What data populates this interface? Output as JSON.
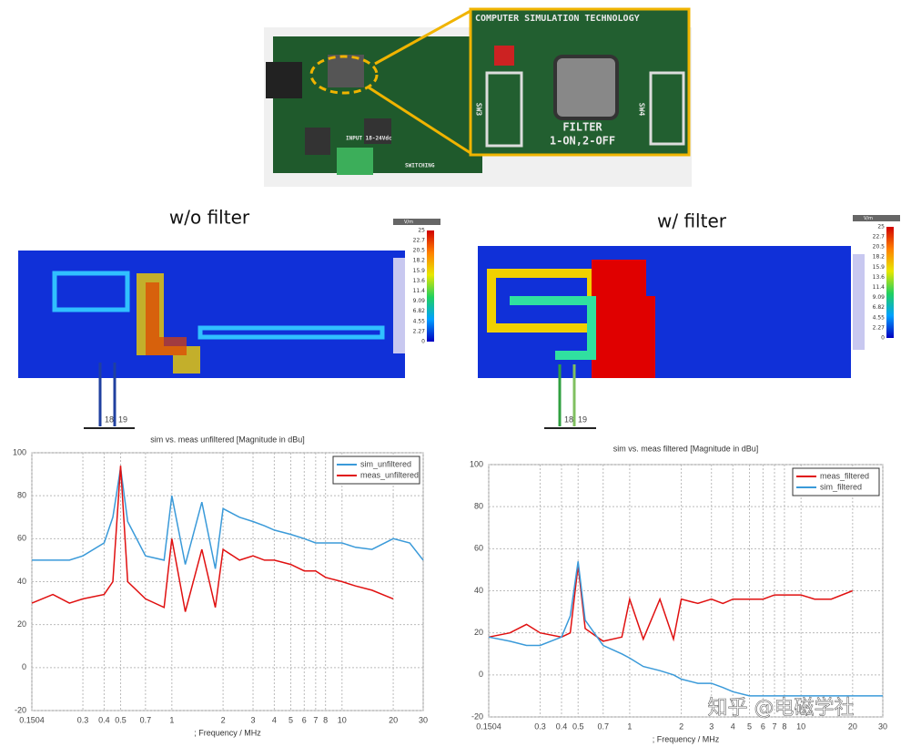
{
  "photo": {
    "inset_title": "COMPUTER SIMULATION TECHNOLOGY",
    "filter_label": "FILTER",
    "filter_setting": "1-ON,2-OFF",
    "switch_left": "SW3",
    "switch_right": "SW4",
    "board_input": "INPUT 18-24Vdc",
    "board_switching": "SWITCHING"
  },
  "field_maps": {
    "left_title": "w/o filter",
    "right_title": "w/ filter",
    "colorbar_unit": "V/m",
    "colorbar_ticks": [
      25,
      22.7,
      20.5,
      18.2,
      15.9,
      13.6,
      11.4,
      9.09,
      6.82,
      4.55,
      2.27,
      0
    ],
    "probes": [
      "18",
      "19"
    ]
  },
  "chart_data": [
    {
      "type": "line",
      "title": "sim vs. meas unfiltered [Magnitude in dBu]",
      "x_label": "; Frequency / MHz",
      "x": [
        0.1504,
        0.2,
        0.25,
        0.3,
        0.4,
        0.45,
        0.5,
        0.55,
        0.7,
        0.9,
        1,
        1.2,
        1.5,
        1.8,
        2,
        2.5,
        3,
        3.5,
        4,
        5,
        6,
        7,
        8,
        10,
        12,
        15,
        20,
        25,
        30
      ],
      "series": [
        {
          "name": "sim_unfiltered",
          "color": "#3a9ad9",
          "values": [
            50,
            50,
            50,
            52,
            58,
            70,
            93,
            68,
            52,
            50,
            80,
            48,
            77,
            46,
            74,
            70,
            68,
            66,
            64,
            62,
            60,
            58,
            58,
            58,
            56,
            55,
            60,
            58,
            50
          ]
        },
        {
          "name": "meas_unfiltered",
          "color": "#e01010",
          "values": [
            30,
            34,
            30,
            32,
            34,
            40,
            94,
            40,
            32,
            28,
            60,
            26,
            55,
            28,
            55,
            50,
            52,
            50,
            50,
            48,
            45,
            45,
            42,
            40,
            38,
            36,
            32,
            null,
            null
          ]
        }
      ],
      "xlim": [
        0.1504,
        30
      ],
      "ylim": [
        -20,
        100
      ],
      "xticks": [
        0.1504,
        0.3,
        0.4,
        0.5,
        0.7,
        1,
        2,
        3,
        4,
        5,
        6,
        7,
        8,
        10,
        20,
        30
      ],
      "yticks": [
        -20,
        0,
        20,
        40,
        60,
        80,
        100
      ],
      "log_x": true,
      "grid": true,
      "legend": "upper right"
    },
    {
      "type": "line",
      "title": "sim vs. meas filtered [Magnitude in dBu]",
      "x_label": "; Frequency / MHz",
      "x": [
        0.1504,
        0.2,
        0.25,
        0.3,
        0.4,
        0.45,
        0.5,
        0.55,
        0.7,
        0.9,
        1,
        1.2,
        1.5,
        1.8,
        2,
        2.5,
        3,
        3.5,
        4,
        5,
        6,
        7,
        8,
        10,
        12,
        15,
        20,
        25,
        30
      ],
      "series": [
        {
          "name": "meas_filtered",
          "color": "#e01010",
          "values": [
            18,
            20,
            24,
            20,
            18,
            20,
            52,
            22,
            16,
            18,
            36,
            17,
            36,
            17,
            36,
            34,
            36,
            34,
            36,
            36,
            36,
            38,
            38,
            38,
            36,
            36,
            40,
            null,
            null
          ]
        },
        {
          "name": "sim_filtered",
          "color": "#3a9ad9",
          "values": [
            18,
            16,
            14,
            14,
            18,
            28,
            54,
            26,
            14,
            10,
            8,
            4,
            2,
            0,
            -2,
            -4,
            -4,
            -6,
            -8,
            -10,
            -10,
            -10,
            -10,
            -10,
            -10,
            -10,
            -10,
            -10,
            -10
          ]
        }
      ],
      "xlim": [
        0.1504,
        30
      ],
      "ylim": [
        -20,
        100
      ],
      "xticks": [
        0.1504,
        0.3,
        0.4,
        0.5,
        0.7,
        1,
        2,
        3,
        4,
        5,
        6,
        7,
        8,
        10,
        20,
        30
      ],
      "yticks": [
        -20,
        0,
        20,
        40,
        60,
        80,
        100
      ],
      "log_x": true,
      "grid": true,
      "legend": "upper right"
    }
  ],
  "watermark": "知乎 @电磁学社"
}
